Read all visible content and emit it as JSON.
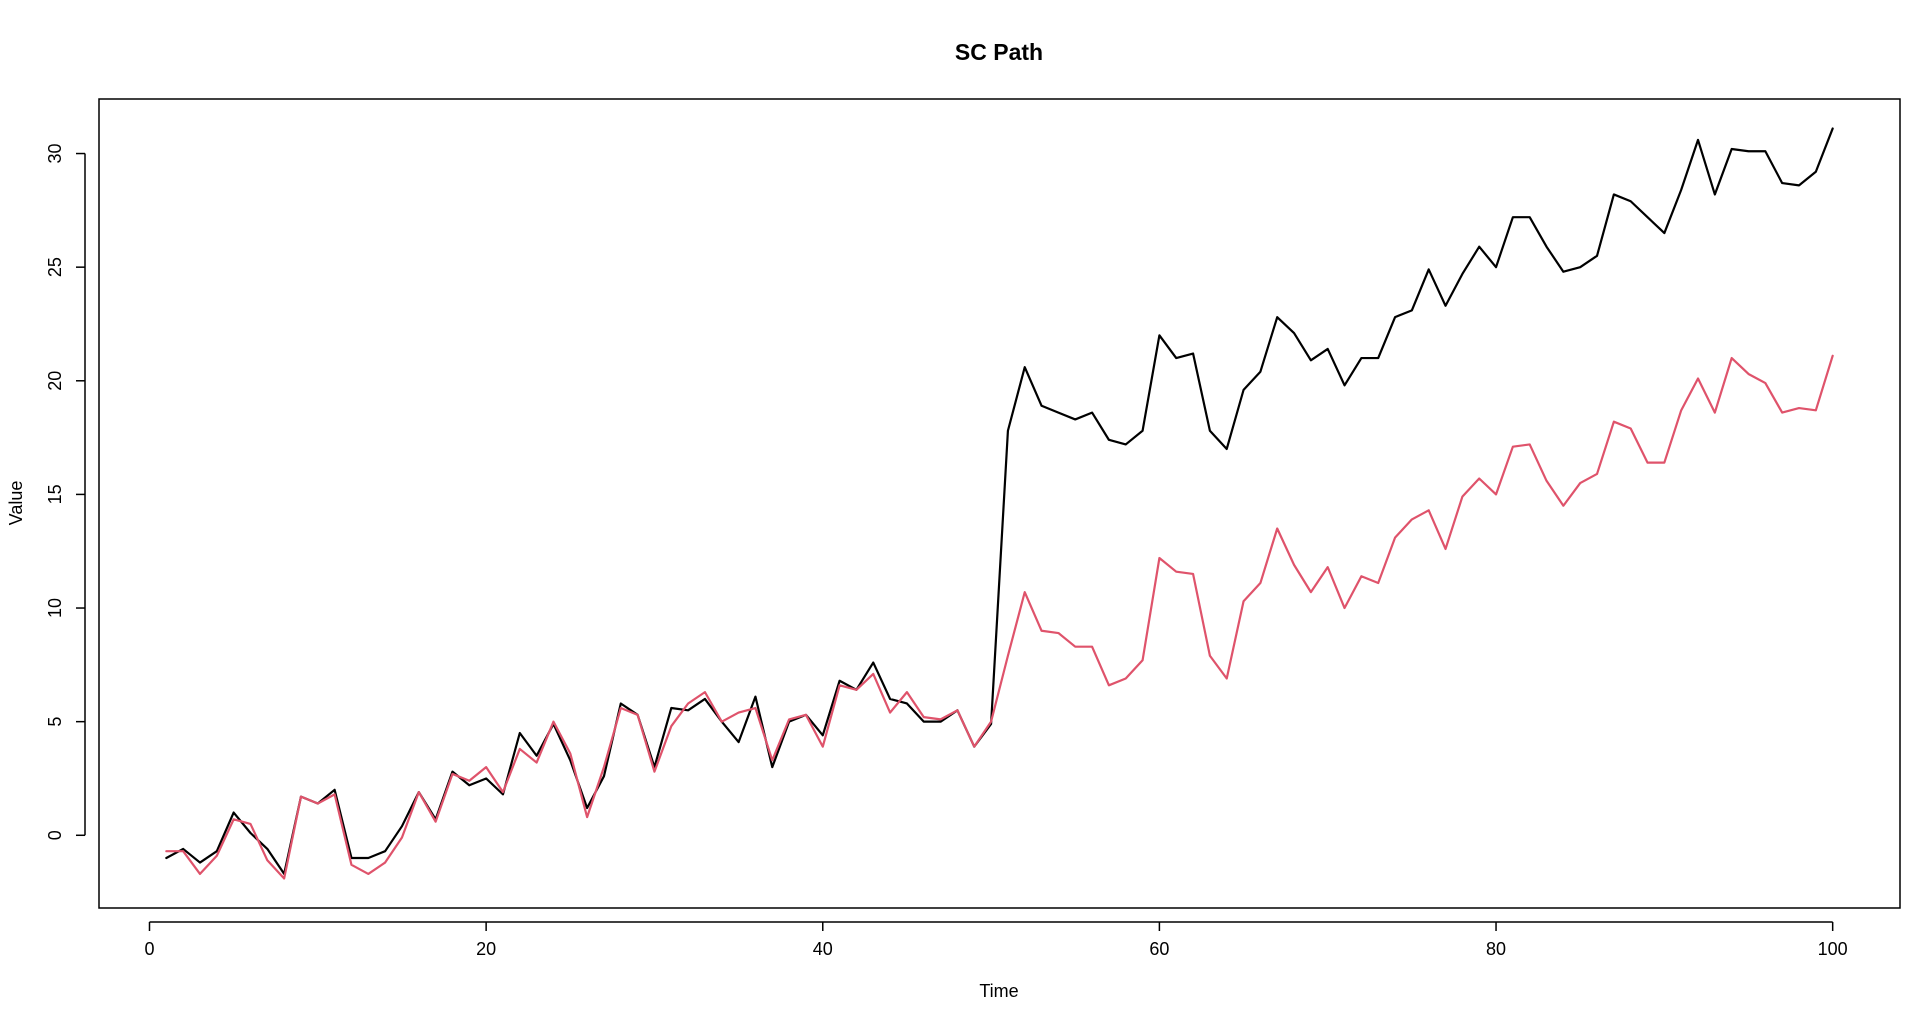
{
  "chart_data": {
    "type": "line",
    "title": "SC Path",
    "xlabel": "Time",
    "ylabel": "Value",
    "xlim": [
      -3,
      104
    ],
    "ylim": [
      -3.2,
      32.4
    ],
    "xticks": [
      0,
      20,
      40,
      60,
      80,
      100
    ],
    "yticks": [
      0,
      5,
      10,
      15,
      20,
      25,
      30
    ],
    "grid": false,
    "legend": "none",
    "x": [
      1,
      2,
      3,
      4,
      5,
      6,
      7,
      8,
      9,
      10,
      11,
      12,
      13,
      14,
      15,
      16,
      17,
      18,
      19,
      20,
      21,
      22,
      23,
      24,
      25,
      26,
      27,
      28,
      29,
      30,
      31,
      32,
      33,
      34,
      35,
      36,
      37,
      38,
      39,
      40,
      41,
      42,
      43,
      44,
      45,
      46,
      47,
      48,
      49,
      50,
      51,
      52,
      53,
      54,
      55,
      56,
      57,
      58,
      59,
      60,
      61,
      62,
      63,
      64,
      65,
      66,
      67,
      68,
      69,
      70,
      71,
      72,
      73,
      74,
      75,
      76,
      77,
      78,
      79,
      80,
      81,
      82,
      83,
      84,
      85,
      86,
      87,
      88,
      89,
      90,
      91,
      92,
      93,
      94,
      95,
      96,
      97,
      98,
      99,
      100
    ],
    "series": [
      {
        "color": "#000000",
        "values": [
          -1.0,
          -0.6,
          -1.2,
          -0.7,
          1.0,
          0.1,
          -0.6,
          -1.7,
          1.7,
          1.4,
          2.0,
          -1.0,
          -1.0,
          -0.7,
          0.4,
          1.9,
          0.7,
          2.8,
          2.2,
          2.5,
          1.8,
          4.5,
          3.5,
          4.9,
          3.3,
          1.2,
          2.6,
          5.8,
          5.3,
          3.0,
          5.6,
          5.5,
          6.0,
          5.0,
          4.1,
          6.1,
          3.0,
          5.0,
          5.3,
          4.4,
          6.8,
          6.4,
          7.6,
          6.0,
          5.8,
          5.0,
          5.0,
          5.5,
          3.9,
          4.9,
          17.8,
          20.6,
          18.9,
          18.6,
          18.3,
          18.6,
          17.4,
          17.2,
          17.8,
          22.0,
          21.0,
          21.2,
          17.8,
          17.0,
          19.6,
          20.4,
          22.8,
          22.1,
          20.9,
          21.4,
          19.8,
          21.0,
          21.0,
          22.8,
          23.1,
          24.9,
          23.3,
          24.7,
          25.9,
          25.0,
          27.2,
          27.2,
          25.9,
          24.8,
          25.0,
          25.5,
          28.2,
          27.9,
          27.2,
          26.5,
          28.4,
          30.6,
          28.2,
          30.2,
          30.1,
          30.1,
          28.7,
          28.6,
          29.2,
          31.1
        ]
      },
      {
        "color": "#DF536B",
        "values": [
          -0.7,
          -0.7,
          -1.7,
          -0.9,
          0.7,
          0.5,
          -1.1,
          -1.9,
          1.7,
          1.4,
          1.8,
          -1.3,
          -1.7,
          -1.2,
          -0.1,
          1.9,
          0.6,
          2.7,
          2.4,
          3.0,
          1.9,
          3.8,
          3.2,
          5.0,
          3.6,
          0.8,
          3.0,
          5.6,
          5.3,
          2.8,
          4.8,
          5.8,
          6.3,
          5.0,
          5.4,
          5.6,
          3.3,
          5.1,
          5.3,
          3.9,
          6.6,
          6.4,
          7.1,
          5.4,
          6.3,
          5.2,
          5.1,
          5.5,
          3.9,
          5.0,
          7.9,
          10.7,
          9.0,
          8.9,
          8.3,
          8.3,
          6.6,
          6.9,
          7.7,
          12.2,
          11.6,
          11.5,
          7.9,
          6.9,
          10.3,
          11.1,
          13.5,
          11.9,
          10.7,
          11.8,
          10.0,
          11.4,
          11.1,
          13.1,
          13.9,
          14.3,
          12.6,
          14.9,
          15.7,
          15.0,
          17.1,
          17.2,
          15.6,
          14.5,
          15.5,
          15.9,
          18.2,
          17.9,
          16.4,
          16.4,
          18.7,
          20.1,
          18.6,
          21.0,
          20.3,
          19.9,
          18.6,
          18.8,
          18.7,
          21.1
        ]
      }
    ]
  }
}
